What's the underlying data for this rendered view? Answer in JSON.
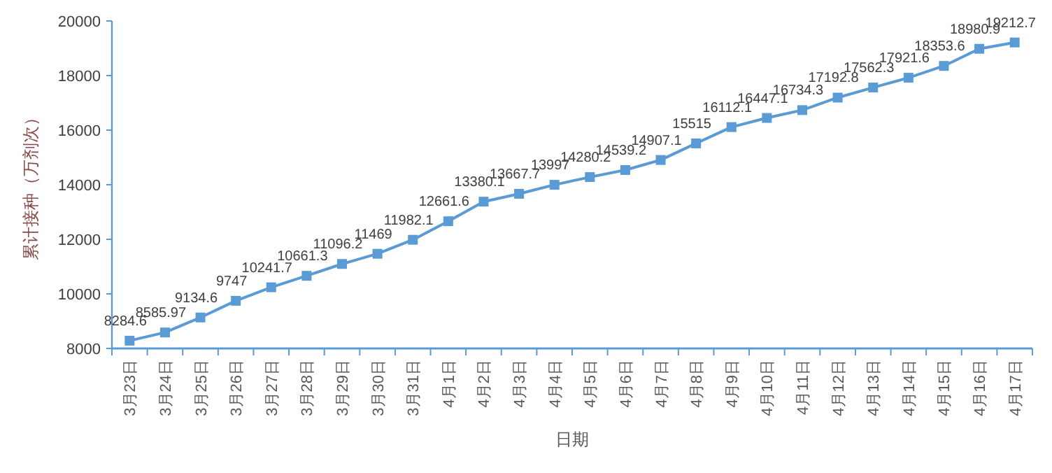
{
  "chart_data": {
    "type": "line",
    "xlabel": "日期",
    "ylabel": "累计接种（万剂次）",
    "categories": [
      "3月23日",
      "3月24日",
      "3月25日",
      "3月26日",
      "3月27日",
      "3月28日",
      "3月29日",
      "3月30日",
      "3月31日",
      "4月1日",
      "4月2日",
      "4月3日",
      "4月4日",
      "4月5日",
      "4月6日",
      "4月7日",
      "4月8日",
      "4月9日",
      "4月10日",
      "4月11日",
      "4月12日",
      "4月13日",
      "4月14日",
      "4月15日",
      "4月16日",
      "4月17日"
    ],
    "series": [
      {
        "color": "#5b9bd5",
        "values": [
          8284.6,
          8585.97,
          9134.6,
          9747,
          10241.7,
          10661.3,
          11096.2,
          11469,
          11982.1,
          12661.6,
          13380.1,
          13667.7,
          13997,
          14280.2,
          14539.2,
          14907.1,
          15515,
          16112.1,
          16447.1,
          16734.3,
          17192.8,
          17562.3,
          17921.6,
          18353.6,
          18980.9,
          19212.7
        ]
      }
    ],
    "ylim": [
      8000,
      20000
    ],
    "yticks": [
      8000,
      10000,
      12000,
      14000,
      16000,
      18000,
      20000
    ],
    "data_labels": true,
    "marker": "square",
    "line_style": "solid"
  }
}
